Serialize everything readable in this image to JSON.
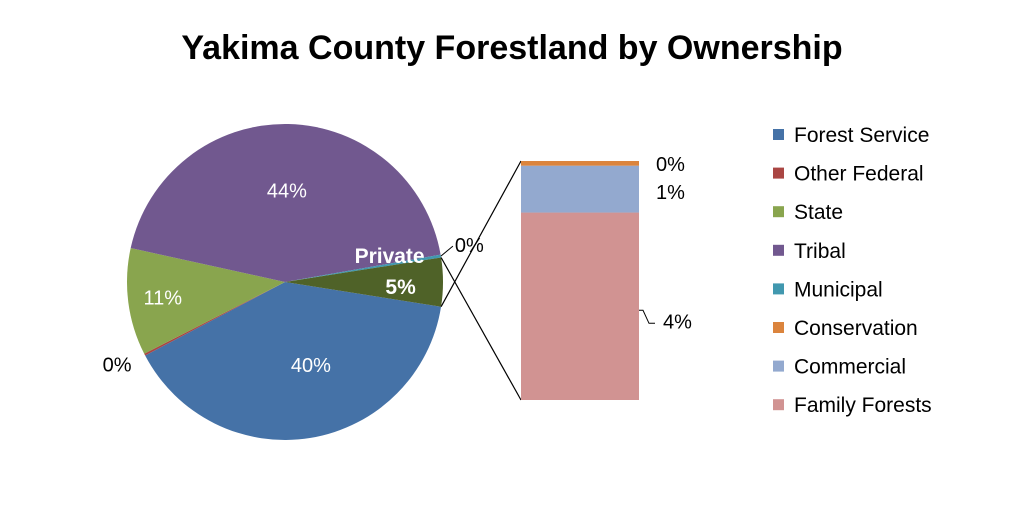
{
  "chart_data": {
    "type": "pie",
    "subtype": "pie-of-bar",
    "title": "Yakima County Forestland by Ownership",
    "legend_position": "right",
    "legend": [
      {
        "name": "Forest Service",
        "color": "#4572A7"
      },
      {
        "name": "Other Federal",
        "color": "#AA4643"
      },
      {
        "name": "State",
        "color": "#89A54E"
      },
      {
        "name": "Tribal",
        "color": "#71588F"
      },
      {
        "name": "Municipal",
        "color": "#4198AF"
      },
      {
        "name": "Conservation",
        "color": "#DB843D"
      },
      {
        "name": "Commercial",
        "color": "#93A9CF"
      },
      {
        "name": "Family Forests",
        "color": "#D19392"
      }
    ],
    "pie": {
      "slices": [
        {
          "name": "Forest Service",
          "value": 40,
          "label": "40%",
          "color": "#4572A7"
        },
        {
          "name": "Other Federal",
          "value": 0.2,
          "label": "0%",
          "color": "#AA4643"
        },
        {
          "name": "State",
          "value": 11,
          "label": "11%",
          "color": "#89A54E"
        },
        {
          "name": "Tribal",
          "value": 44,
          "label": "44%",
          "color": "#71588F"
        },
        {
          "name": "Municipal",
          "value": 0.3,
          "label": "0%",
          "color": "#4198AF"
        },
        {
          "name": "Private",
          "value": 5,
          "label_name": "Private",
          "label": "5%",
          "color": "#4F6228"
        }
      ]
    },
    "bar": {
      "segments": [
        {
          "name": "Family Forests",
          "value": 4,
          "label": "4%",
          "color": "#D19392"
        },
        {
          "name": "Commercial",
          "value": 1,
          "label": "1%",
          "color": "#93A9CF"
        },
        {
          "name": "Conservation",
          "value": 0.1,
          "label": "0%",
          "color": "#DB843D"
        }
      ]
    }
  }
}
